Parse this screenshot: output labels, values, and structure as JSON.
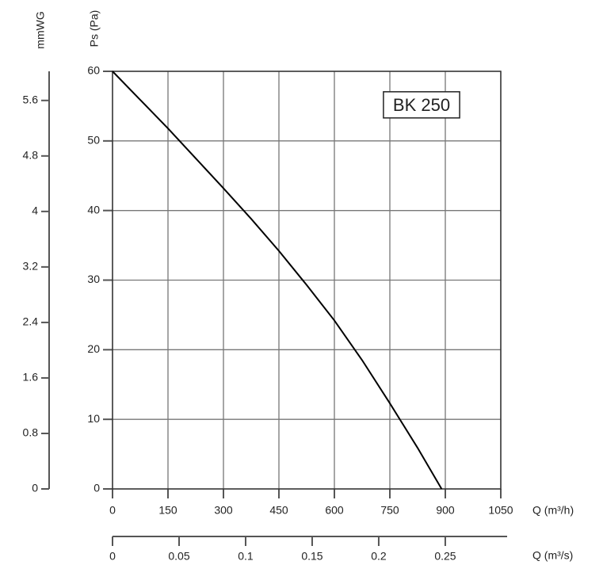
{
  "chart_data": {
    "type": "line",
    "annotation": "BK 250",
    "xlabel": "Q (m³/h)",
    "ylabel": "Ps (Pa)",
    "y2label": "mmWG",
    "x2label": "Q (m³/s)",
    "x": [
      0,
      75,
      150,
      225,
      300,
      375,
      450,
      525,
      600,
      675,
      750,
      825,
      890
    ],
    "values": [
      60,
      55.9,
      51.8,
      47.5,
      43.2,
      38.8,
      34.2,
      29.3,
      24.2,
      18.5,
      12.3,
      5.9,
      0
    ],
    "color": "#000000",
    "xlim": [
      0,
      1050
    ],
    "xticks": [
      0,
      150,
      300,
      450,
      600,
      750,
      900,
      1050
    ],
    "ylim": [
      0,
      60
    ],
    "yticks": [
      0,
      10,
      20,
      30,
      40,
      50,
      60
    ],
    "y2lim": [
      0,
      6.02
    ],
    "y2ticks": [
      0,
      0.8,
      1.6,
      2.4,
      3.2,
      4.0,
      4.8,
      5.6
    ],
    "x2lim": [
      0,
      0.2917
    ],
    "x2ticks": [
      0,
      0.05,
      0.1,
      0.15,
      0.2,
      0.25
    ],
    "grid": true
  }
}
